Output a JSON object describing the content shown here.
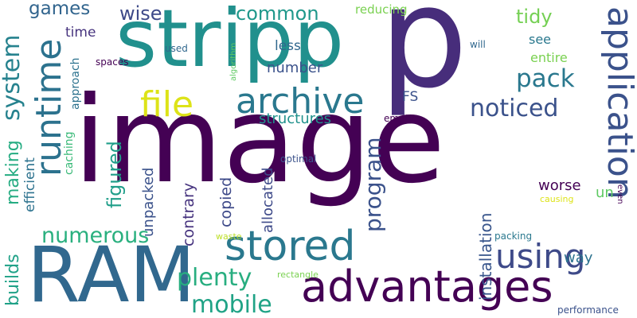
{
  "words": [
    {
      "text": "image",
      "color": "#440154"
    },
    {
      "text": "stripp",
      "color": "#21908d"
    },
    {
      "text": "RAM",
      "color": "#31688e"
    },
    {
      "text": "p",
      "color": "#472d7b"
    },
    {
      "text": "advantages",
      "color": "#440154"
    },
    {
      "text": "application",
      "color": "#3b528b"
    },
    {
      "text": "stored",
      "color": "#2a788e"
    },
    {
      "text": "runtime",
      "color": "#2c728e"
    },
    {
      "text": "archive",
      "color": "#2a788e"
    },
    {
      "text": "file",
      "color": "#dde318"
    },
    {
      "text": "using",
      "color": "#3e4a89"
    },
    {
      "text": "program",
      "color": "#3b528b"
    },
    {
      "text": "mobile",
      "color": "#20a386"
    },
    {
      "text": "plenty",
      "color": "#28ae80"
    },
    {
      "text": "numerous",
      "color": "#2ab07f"
    },
    {
      "text": "pack",
      "color": "#2a788e"
    },
    {
      "text": "noticed",
      "color": "#3b528b"
    },
    {
      "text": "system",
      "color": "#26828e"
    },
    {
      "text": "builds",
      "color": "#1fa187"
    },
    {
      "text": "making",
      "color": "#25ac82"
    },
    {
      "text": "games",
      "color": "#32658e"
    },
    {
      "text": "figured",
      "color": "#1f9e89"
    },
    {
      "text": "common",
      "color": "#1f988b"
    },
    {
      "text": "wise",
      "color": "#3e4a89"
    },
    {
      "text": "tidy",
      "color": "#75d054"
    },
    {
      "text": "installation",
      "color": "#39568c"
    },
    {
      "text": "structures",
      "color": "#21918c"
    },
    {
      "text": "number",
      "color": "#3b528b"
    },
    {
      "text": "contrary",
      "color": "#46337e"
    },
    {
      "text": "copied",
      "color": "#3e4a89"
    },
    {
      "text": "allocated",
      "color": "#3e4a89"
    },
    {
      "text": "unpacked",
      "color": "#3b528b"
    },
    {
      "text": "efficient",
      "color": "#2c728e"
    },
    {
      "text": "way",
      "color": "#2c728e"
    },
    {
      "text": "worse",
      "color": "#440154"
    },
    {
      "text": "un",
      "color": "#5ec962"
    },
    {
      "text": "time",
      "color": "#46337e"
    },
    {
      "text": "less",
      "color": "#31688e"
    },
    {
      "text": "FS",
      "color": "#3b528b"
    },
    {
      "text": "see",
      "color": "#2a788e"
    },
    {
      "text": "entire",
      "color": "#7ad151"
    },
    {
      "text": "reducing",
      "color": "#7ad151"
    },
    {
      "text": "approach",
      "color": "#2c728e"
    },
    {
      "text": "caching",
      "color": "#38b977"
    },
    {
      "text": "spaces",
      "color": "#440154"
    },
    {
      "text": "used",
      "color": "#31688e"
    },
    {
      "text": "algorithm",
      "color": "#5ec962"
    },
    {
      "text": "will",
      "color": "#31688e"
    },
    {
      "text": "empty",
      "color": "#440154"
    },
    {
      "text": "optimal",
      "color": "#3b528b"
    },
    {
      "text": "causing",
      "color": "#dde318"
    },
    {
      "text": "even",
      "color": "#440154"
    },
    {
      "text": "waste",
      "color": "#bddf26"
    },
    {
      "text": "packing",
      "color": "#2a788e"
    },
    {
      "text": "rectangle",
      "color": "#7ad151"
    },
    {
      "text": "performance",
      "color": "#3b528b"
    }
  ]
}
